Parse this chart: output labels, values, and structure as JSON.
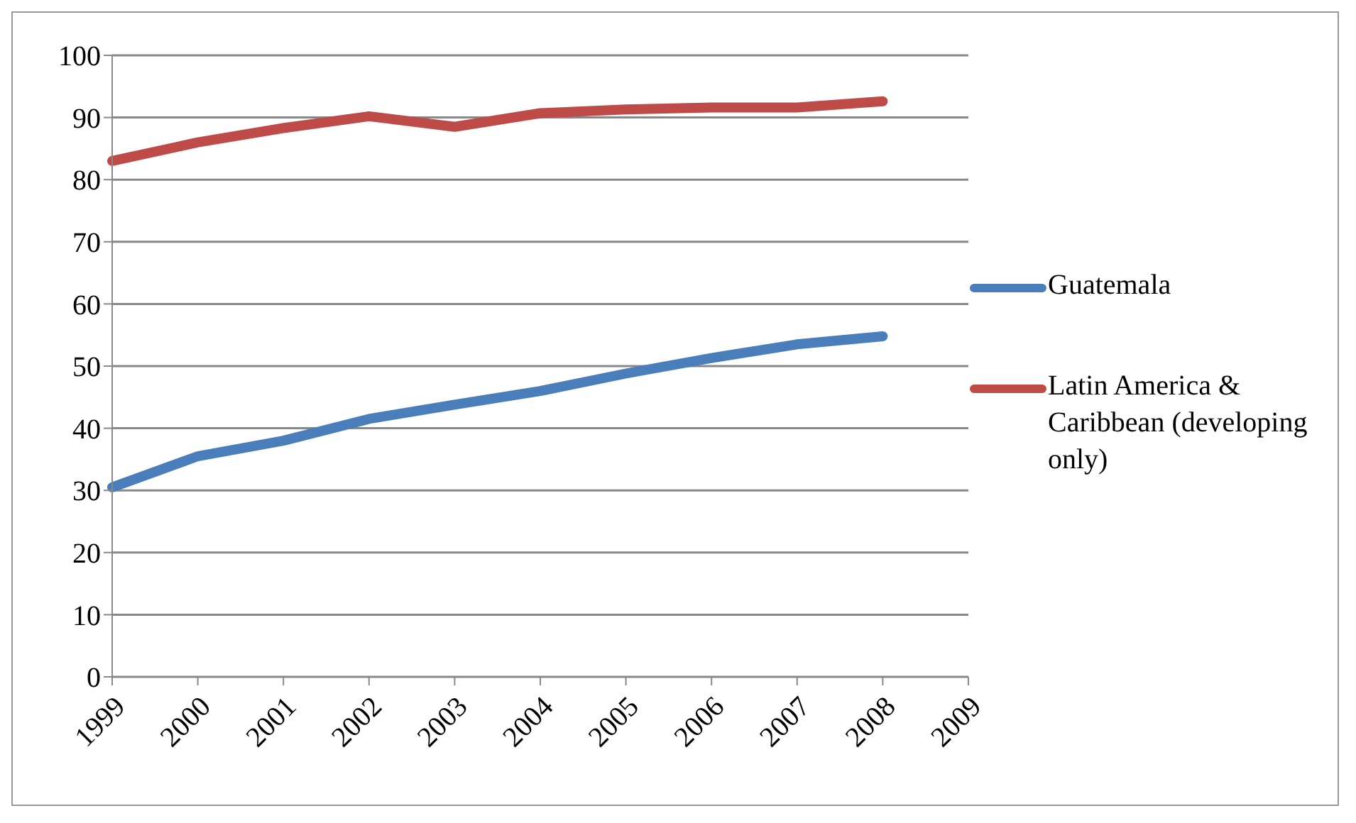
{
  "chart_data": {
    "type": "line",
    "categories": [
      "1999",
      "2000",
      "2001",
      "2002",
      "2003",
      "2004",
      "2005",
      "2006",
      "2007",
      "2008",
      "2009"
    ],
    "series": [
      {
        "name": "Guatemala",
        "color": "#4a7ebb",
        "values": [
          30.5,
          35.5,
          38,
          41.5,
          43.8,
          46,
          48.8,
          51.3,
          53.5,
          54.8,
          null
        ]
      },
      {
        "name": "Latin America & Caribbean (developing only)",
        "color": "#be4b48",
        "values": [
          83,
          86,
          88.3,
          90.2,
          88.5,
          90.7,
          91.3,
          91.6,
          91.6,
          92.6,
          null
        ]
      }
    ],
    "ylim": [
      0,
      100
    ],
    "yticks": [
      0,
      10,
      20,
      30,
      40,
      50,
      60,
      70,
      80,
      90,
      100
    ],
    "grid": "y",
    "legend": "right",
    "marker": "none",
    "line_style": "solid"
  }
}
